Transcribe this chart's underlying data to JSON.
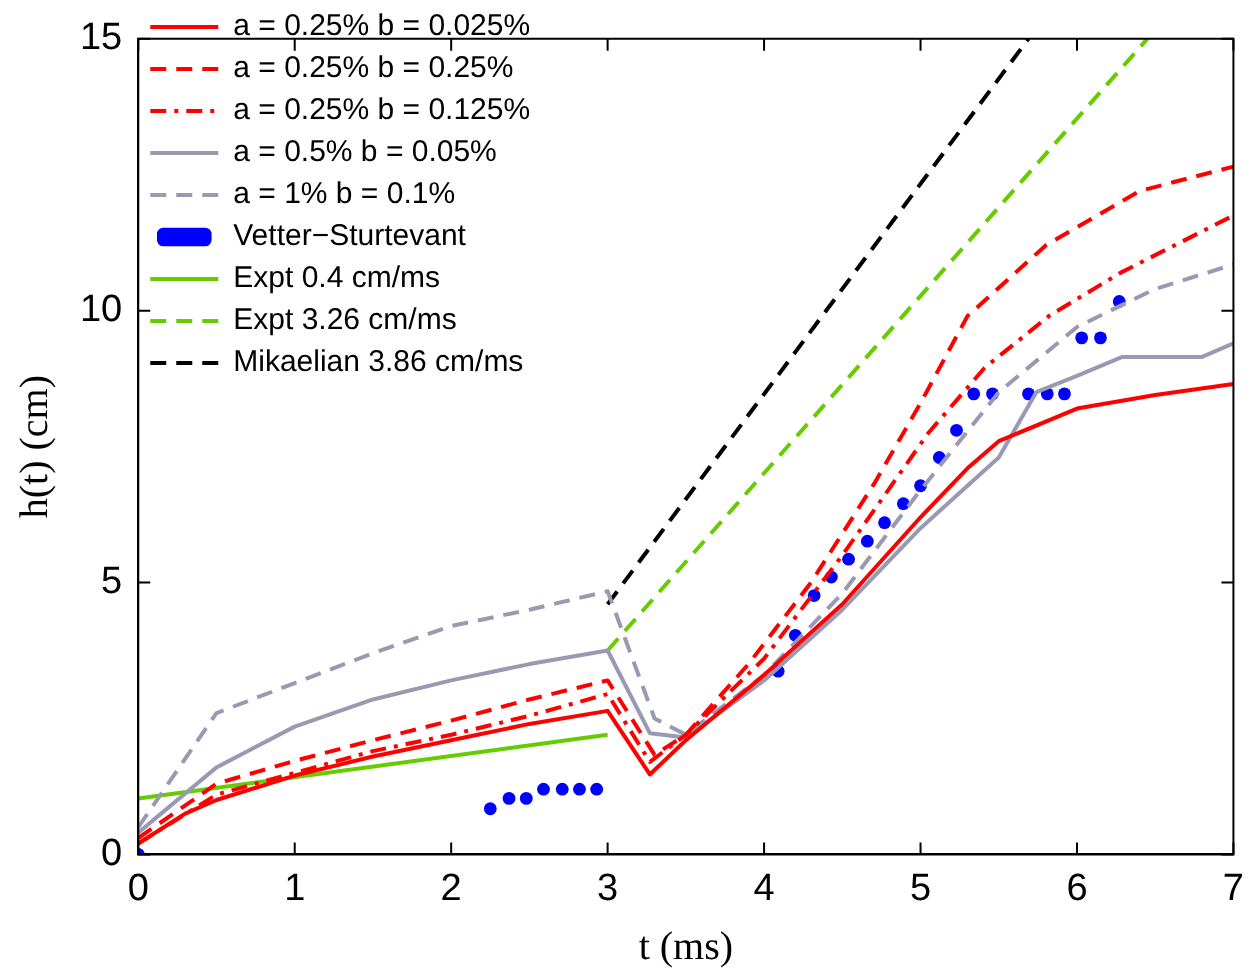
{
  "chart_data": {
    "type": "line",
    "xlabel": "t (ms)",
    "ylabel": "h(t) (cm)",
    "xlim": [
      0,
      7
    ],
    "ylim": [
      0,
      15
    ],
    "xticks": [
      0,
      1,
      2,
      3,
      4,
      5,
      6,
      7
    ],
    "yticks": [
      0,
      5,
      10,
      15
    ],
    "grid": false,
    "legend": "top left",
    "marker": "none",
    "series": [
      {
        "name": "a = 0.25% b = 0.025%",
        "color": "#ff0000",
        "line_style": "solid",
        "x": [
          0,
          0.3,
          0.5,
          1,
          1.5,
          2,
          2.5,
          3,
          3.27,
          3.5,
          4,
          4.5,
          5,
          5.3,
          5.5,
          6,
          6.5,
          7
        ],
        "values": [
          0.2,
          0.75,
          1.0,
          1.45,
          1.8,
          2.1,
          2.4,
          2.64,
          1.47,
          2.1,
          3.3,
          4.6,
          6.2,
          7.1,
          7.6,
          8.2,
          8.45,
          8.65
        ]
      },
      {
        "name": "a = 0.25% b = 0.25%",
        "color": "#ff0000",
        "line_style": "dashed",
        "x": [
          0,
          0.5,
          1,
          1.5,
          2,
          2.5,
          3,
          3.3,
          3.5,
          3.9,
          4.3,
          4.7,
          5,
          5.3,
          5.8,
          6.4,
          7
        ],
        "values": [
          0.3,
          1.3,
          1.72,
          2.1,
          2.46,
          2.85,
          3.2,
          1.83,
          2.2,
          3.5,
          5.0,
          6.8,
          8.3,
          9.9,
          11.2,
          12.2,
          12.65
        ]
      },
      {
        "name": "a = 0.25% b = 0.125%",
        "color": "#ff0000",
        "line_style": "dashdot",
        "x": [
          0,
          0.5,
          1,
          1.5,
          2,
          2.5,
          3,
          3.27,
          3.5,
          4,
          4.5,
          5.05,
          5.41,
          5.82,
          6.28,
          7
        ],
        "values": [
          0.2,
          1.1,
          1.5,
          1.9,
          2.2,
          2.55,
          2.95,
          1.7,
          2.2,
          3.6,
          5.5,
          7.75,
          8.95,
          9.9,
          10.7,
          11.75
        ]
      },
      {
        "name": "a = 0.5% b = 0.05%",
        "color": "#9999b3",
        "line_style": "solid",
        "x": [
          0,
          0.5,
          1,
          1.5,
          2,
          2.5,
          3,
          3.27,
          3.5,
          4,
          4.5,
          5,
          5.5,
          5.74,
          6,
          6.29,
          6.8,
          7
        ],
        "values": [
          0.4,
          1.6,
          2.35,
          2.85,
          3.2,
          3.5,
          3.75,
          2.23,
          2.15,
          3.2,
          4.5,
          6.0,
          7.3,
          8.5,
          8.8,
          9.15,
          9.15,
          9.4
        ]
      },
      {
        "name": "a = 1% b = 0.1%",
        "color": "#9999b3",
        "line_style": "dashed",
        "x": [
          0,
          0.5,
          1,
          1.5,
          2,
          2.5,
          3,
          3.3,
          3.5,
          4,
          4.5,
          5,
          5.5,
          6,
          6.5,
          7
        ],
        "values": [
          0.5,
          2.6,
          3.15,
          3.7,
          4.2,
          4.5,
          4.84,
          2.5,
          2.2,
          3.3,
          4.8,
          6.7,
          8.5,
          9.7,
          10.4,
          10.85
        ]
      },
      {
        "name": "Vetter−Sturtevant",
        "color": "#0000ff",
        "type": "scatter",
        "marker": "circle",
        "x": [
          0,
          2.25,
          2.37,
          2.48,
          2.59,
          2.71,
          2.82,
          2.93,
          4.09,
          4.2,
          4.32,
          4.43,
          4.54,
          4.66,
          4.77,
          4.89,
          5.0,
          5.12,
          5.23,
          5.34,
          5.46,
          5.69,
          5.81,
          5.92,
          6.03,
          6.15,
          6.27
        ],
        "values": [
          0,
          0.84,
          1.03,
          1.03,
          1.2,
          1.2,
          1.2,
          1.2,
          3.37,
          4.03,
          4.76,
          5.1,
          5.43,
          5.76,
          6.1,
          6.45,
          6.78,
          7.3,
          7.8,
          8.47,
          8.47,
          8.47,
          8.47,
          8.47,
          9.5,
          9.5,
          10.17
        ]
      },
      {
        "name": "Expt 0.4 cm/ms",
        "color": "#66cc00",
        "line_style": "solid",
        "x": [
          0,
          3
        ],
        "values": [
          1.03,
          2.2
        ]
      },
      {
        "name": "Expt 3.26 cm/ms",
        "color": "#66cc00",
        "line_style": "dashed",
        "x": [
          3,
          6.45
        ],
        "values": [
          3.75,
          15
        ]
      },
      {
        "name": "Mikaelian 3.86 cm/ms",
        "color": "#000000",
        "line_style": "dashed",
        "x": [
          3,
          5.69
        ],
        "values": [
          4.6,
          15
        ]
      }
    ]
  }
}
